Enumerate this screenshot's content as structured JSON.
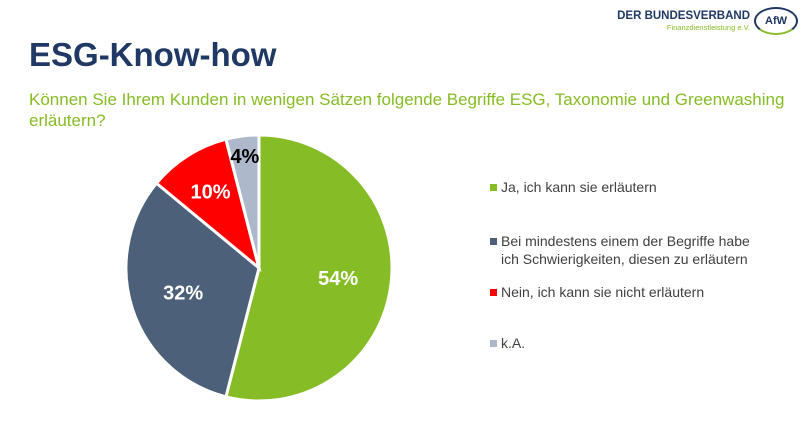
{
  "logo": {
    "line1": "DER BUNDESVERBAND",
    "line2": "Finanzdienstleistung e.V.",
    "badge": "AfW"
  },
  "title": "ESG-Know-how",
  "question": "Können Sie Ihrem Kunden in wenigen Sätzen folgende Begriffe ESG, Taxonomie und Greenwashing erläutern?",
  "chart_data": {
    "type": "pie",
    "categories": [
      "Ja, ich kann sie erläutern",
      "Bei mindestens einem der Begriffe habe ich Schwierigkeiten, diesen zu erläutern",
      "Nein, ich kann sie nicht erläutern",
      "k.A."
    ],
    "values": [
      54,
      32,
      10,
      4
    ],
    "labels": [
      "54%",
      "32%",
      "10%",
      "4%"
    ],
    "colors": [
      "#86bc25",
      "#4d6079",
      "#ff0000",
      "#adb9ca"
    ],
    "label_colors": [
      "#ffffff",
      "#ffffff",
      "#ffffff",
      "#000000"
    ],
    "legend_position": "right"
  }
}
